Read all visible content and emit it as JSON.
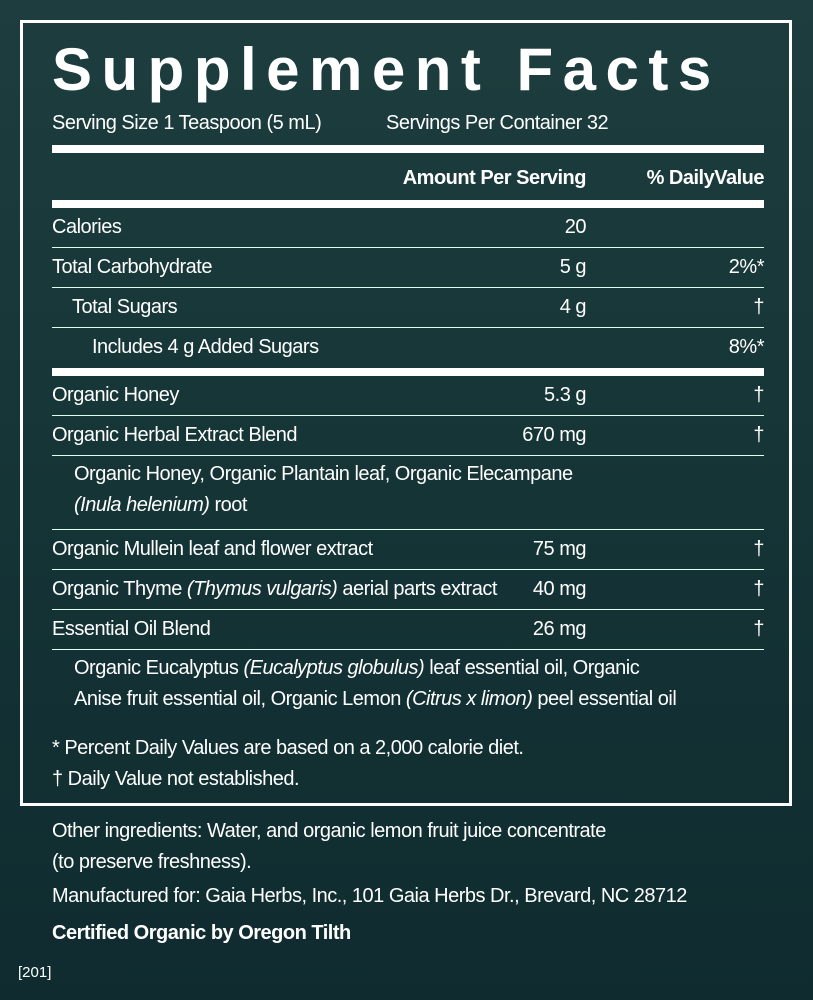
{
  "title": "Supplement Facts",
  "serving_size": "Serving Size 1 Teaspoon (5 mL)",
  "servings_per_container": "Servings Per Container 32",
  "columns": {
    "amount": "Amount Per Serving",
    "daily_value": "% DailyValue"
  },
  "sections": [
    [
      {
        "level": 0,
        "name": [
          {
            "text": "Calories"
          }
        ],
        "amount": "20"
      },
      {
        "level": 0,
        "name": [
          {
            "text": "Total Carbohydrate"
          }
        ],
        "amount": "5 g",
        "daily_value": "2%*"
      },
      {
        "level": 1,
        "name": [
          {
            "text": "Total Sugars"
          }
        ],
        "amount": "4 g",
        "daily_value": "†"
      },
      {
        "level": 2,
        "name": [
          {
            "text": "Includes 4 g Added Sugars"
          }
        ],
        "daily_value": "8%*"
      }
    ],
    [
      {
        "level": 0,
        "name": [
          {
            "text": "Organic Honey"
          }
        ],
        "amount": "5.3 g",
        "daily_value": "†"
      },
      {
        "level": 0,
        "name": [
          {
            "text": "Organic Herbal Extract Blend"
          }
        ],
        "amount": "670 mg",
        "daily_value": "†",
        "description": [
          [
            {
              "text": "Organic Honey, Organic Plantain leaf, Organic Elecampane"
            }
          ],
          [
            {
              "text": "(Inula helenium)",
              "italic": true
            },
            {
              "text": " root"
            }
          ]
        ]
      },
      {
        "level": 0,
        "name": [
          {
            "text": "Organic Mullein leaf and flower extract"
          }
        ],
        "amount": "75 mg",
        "daily_value": "†"
      },
      {
        "level": 0,
        "name": [
          {
            "text": "Organic Thyme "
          },
          {
            "text": "(Thymus vulgaris)",
            "italic": true
          },
          {
            "text": " aerial parts extract"
          }
        ],
        "amount": "40 mg",
        "daily_value": "†"
      },
      {
        "level": 0,
        "name": [
          {
            "text": "Essential Oil Blend"
          }
        ],
        "amount": "26 mg",
        "daily_value": "†",
        "description": [
          [
            {
              "text": "Organic Eucalyptus "
            },
            {
              "text": "(Eucalyptus globulus)",
              "italic": true
            },
            {
              "text": " leaf essential oil, Organic"
            }
          ],
          [
            {
              "text": "Anise fruit essential oil, Organic Lemon "
            },
            {
              "text": "(Citrus x limon)",
              "italic": true
            },
            {
              "text": " peel essential oil"
            }
          ]
        ]
      }
    ]
  ],
  "footnotes": [
    "*  Percent Daily Values are based on a 2,000 calorie diet.",
    "† Daily Value not established."
  ],
  "other_ingredients": [
    "Other ingredients: Water, and organic lemon fruit juice concentrate",
    "(to preserve freshness)."
  ],
  "manufacturer": "Manufactured for: Gaia Herbs, Inc., 101 Gaia Herbs Dr., Brevard, NC 28712",
  "certification": "Certified Organic by Oregon Tilth",
  "code": "[201]"
}
